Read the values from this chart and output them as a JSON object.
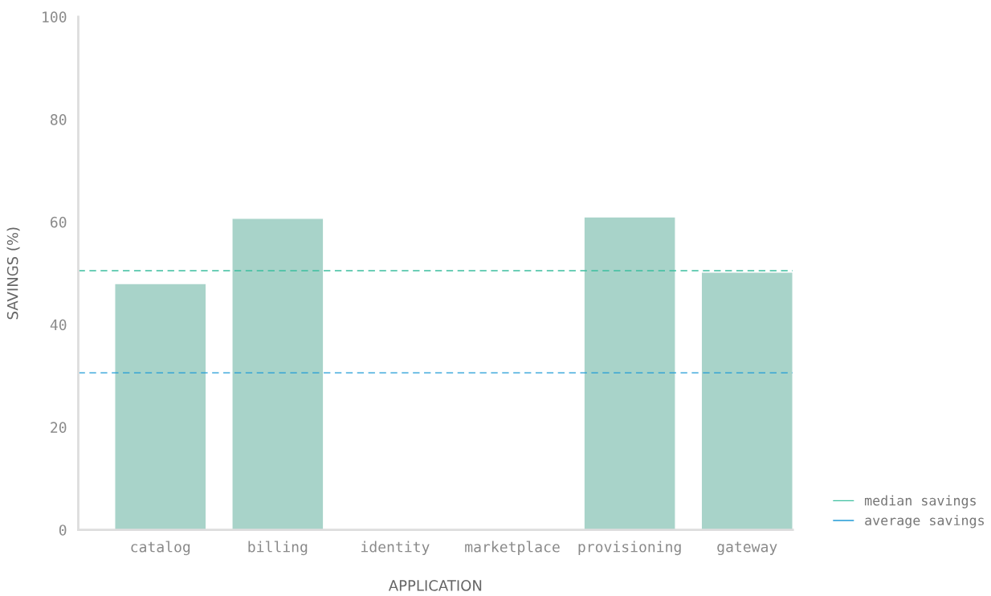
{
  "chart_data": {
    "type": "bar",
    "xlabel": "APPLICATION",
    "ylabel": "SAVINGS (%)",
    "categories": [
      "catalog",
      "billing",
      "identity",
      "marketplace",
      "provisioning",
      "gateway"
    ],
    "values": [
      48,
      60.7,
      null,
      null,
      61,
      50.2
    ],
    "color": "#a8d3c9",
    "ylim": [
      0,
      100
    ],
    "yticks": [
      0,
      20,
      40,
      60,
      80,
      100
    ],
    "grid": false,
    "ref_lines": [
      {
        "axis": "y",
        "value": 50.5,
        "label": "median savings",
        "color": "#3dbf9f",
        "line_style": "dashed"
      },
      {
        "axis": "y",
        "value": 30.6,
        "label": "average savings",
        "color": "#1f9bd6",
        "line_style": "dashed"
      }
    ],
    "legend": "bottom right"
  }
}
